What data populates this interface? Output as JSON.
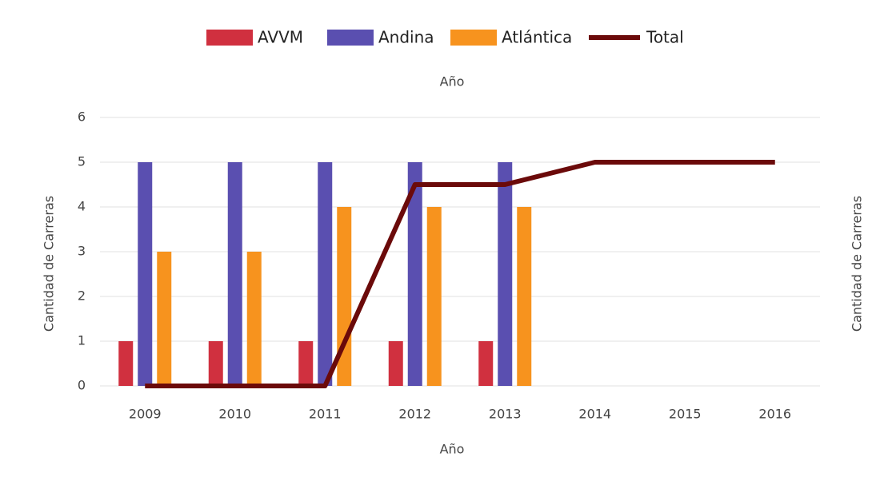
{
  "chart_data": {
    "type": "bar",
    "title": "Año",
    "xlabel": "Año",
    "ylabel": "Cantidad de Carreras",
    "y2label": "Cantidad de Carreras",
    "categories": [
      "2009",
      "2010",
      "2011",
      "2012",
      "2013",
      "2014",
      "2015",
      "2016"
    ],
    "series": [
      {
        "name": "AVVM",
        "type": "bar",
        "color": "#d0303f",
        "values": [
          1,
          1,
          1,
          1,
          1,
          null,
          null,
          null
        ]
      },
      {
        "name": "Andina",
        "type": "bar",
        "color": "#5a4fb0",
        "values": [
          5,
          5,
          5,
          5,
          5,
          null,
          null,
          null
        ]
      },
      {
        "name": "Atlántica",
        "type": "bar",
        "color": "#f7931e",
        "values": [
          3,
          3,
          4,
          4,
          4,
          null,
          null,
          null
        ]
      },
      {
        "name": "Total",
        "type": "line",
        "color": "#6b0a0a",
        "values": [
          0,
          0,
          0,
          4.5,
          4.5,
          5,
          5,
          5
        ]
      }
    ],
    "ylim": [
      0,
      6
    ],
    "yticks": [
      0,
      1,
      2,
      3,
      4,
      5,
      6
    ],
    "grid": true,
    "legend": "top"
  }
}
